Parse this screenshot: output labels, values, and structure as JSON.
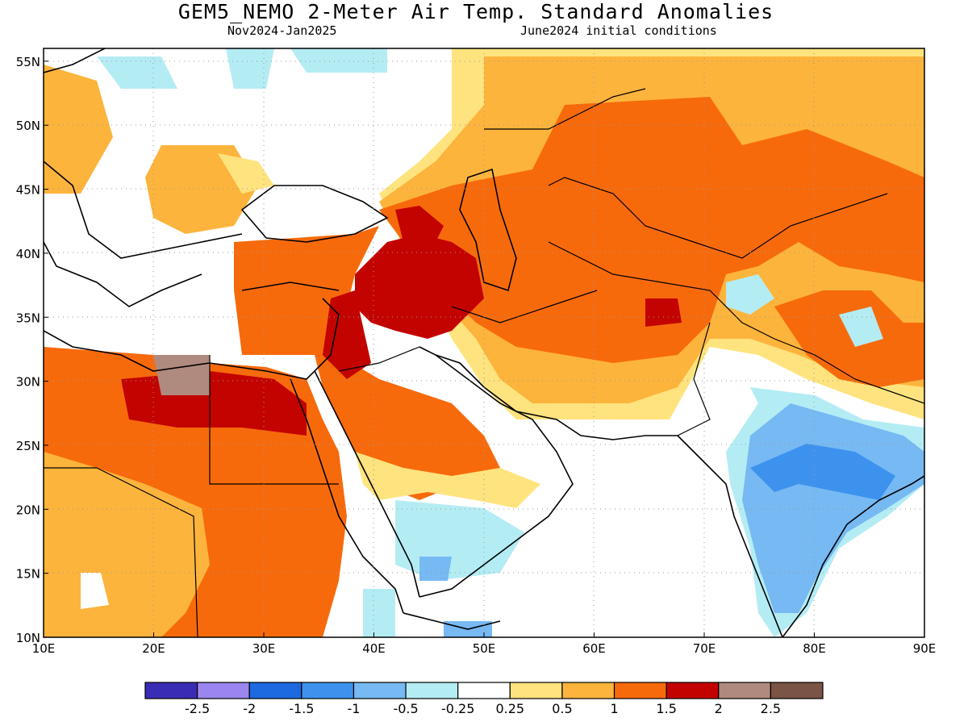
{
  "header": {
    "title": "GEM5_NEMO 2-Meter Air Temp. Standard Anomalies",
    "period": "Nov2024-Jan2025",
    "init": "June2024 initial conditions"
  },
  "map": {
    "lat_labels": [
      "55N",
      "50N",
      "45N",
      "40N",
      "35N",
      "30N",
      "25N",
      "20N",
      "15N",
      "10N"
    ],
    "lat_values": [
      55,
      50,
      45,
      40,
      35,
      30,
      25,
      20,
      15,
      10
    ],
    "lon_labels": [
      "10E",
      "20E",
      "30E",
      "40E",
      "50E",
      "60E",
      "70E",
      "80E",
      "90E"
    ],
    "lon_values": [
      10,
      20,
      30,
      40,
      50,
      60,
      70,
      80,
      90
    ],
    "extent": {
      "lon_min": 10,
      "lon_max": 90,
      "lat_min": 10,
      "lat_max": 56
    }
  },
  "legend": {
    "colors": [
      "#3a2db5",
      "#9a86ee",
      "#1d6ae0",
      "#3d92ee",
      "#76b9f3",
      "#b4ecf4",
      "#ffffff",
      "#ffe37e",
      "#fdb43c",
      "#f76a0c",
      "#c30300",
      "#b08a7e",
      "#7a5444"
    ],
    "labels": [
      "-2.5",
      "-2",
      "-1.5",
      "-1",
      "-0.5",
      "-0.25",
      "0.25",
      "0.5",
      "1",
      "1.5",
      "2",
      "2.5"
    ]
  }
}
